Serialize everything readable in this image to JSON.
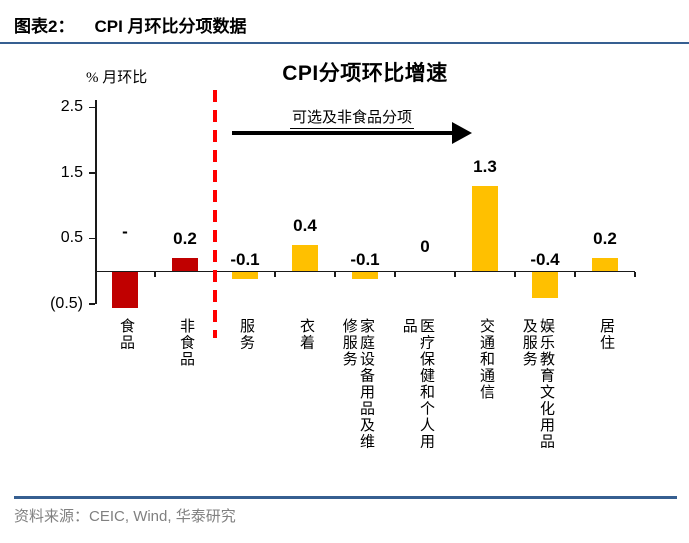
{
  "header": {
    "figure_label": "图表2：",
    "figure_title": "CPI 月环比分项数据"
  },
  "chart_data": {
    "type": "bar",
    "title": "CPI分项环比增速",
    "unit_label": "% 月环比",
    "annotation": {
      "text": "可选及非食品分项",
      "arrow_direction": "right"
    },
    "categories": [
      "食品",
      "非食品",
      "服务",
      "衣着",
      "家庭设备用品及维修服务",
      "医疗保健和个人用品",
      "交通和通信",
      "娱乐教育文化用品及服务",
      "居住"
    ],
    "values": [
      -0.55,
      0.2,
      -0.1,
      0.4,
      -0.1,
      0,
      1.3,
      -0.4,
      0.2
    ],
    "data_labels": [
      "-",
      "0.2",
      "-0.1",
      "0.4",
      "-0.1",
      "0",
      "1.3",
      "-0.4",
      "0.2"
    ],
    "bar_colors": [
      "#C00000",
      "#C00000",
      "#FFC000",
      "#FFC000",
      "#FFC000",
      "#FFC000",
      "#FFC000",
      "#FFC000",
      "#FFC000"
    ],
    "y_ticks": [
      "2.5",
      "1.5",
      "0.5",
      "(0.5)"
    ],
    "y_tick_values": [
      2.5,
      1.5,
      0.5,
      -0.5
    ],
    "ylim": [
      -0.5,
      2.5
    ],
    "grid": false,
    "legend": "none",
    "separator": {
      "after_category": "非食品",
      "style": "red-dashed",
      "color": "#FF0000"
    }
  },
  "footer": {
    "source_label": "资料来源：",
    "source_text": "CEIC, Wind,  华泰研究"
  },
  "colors": {
    "rule": "#365F91",
    "footer_text": "#808080",
    "food_bar": "#C00000",
    "nonfood_bar": "#FFC000",
    "separator": "#FF0000"
  }
}
